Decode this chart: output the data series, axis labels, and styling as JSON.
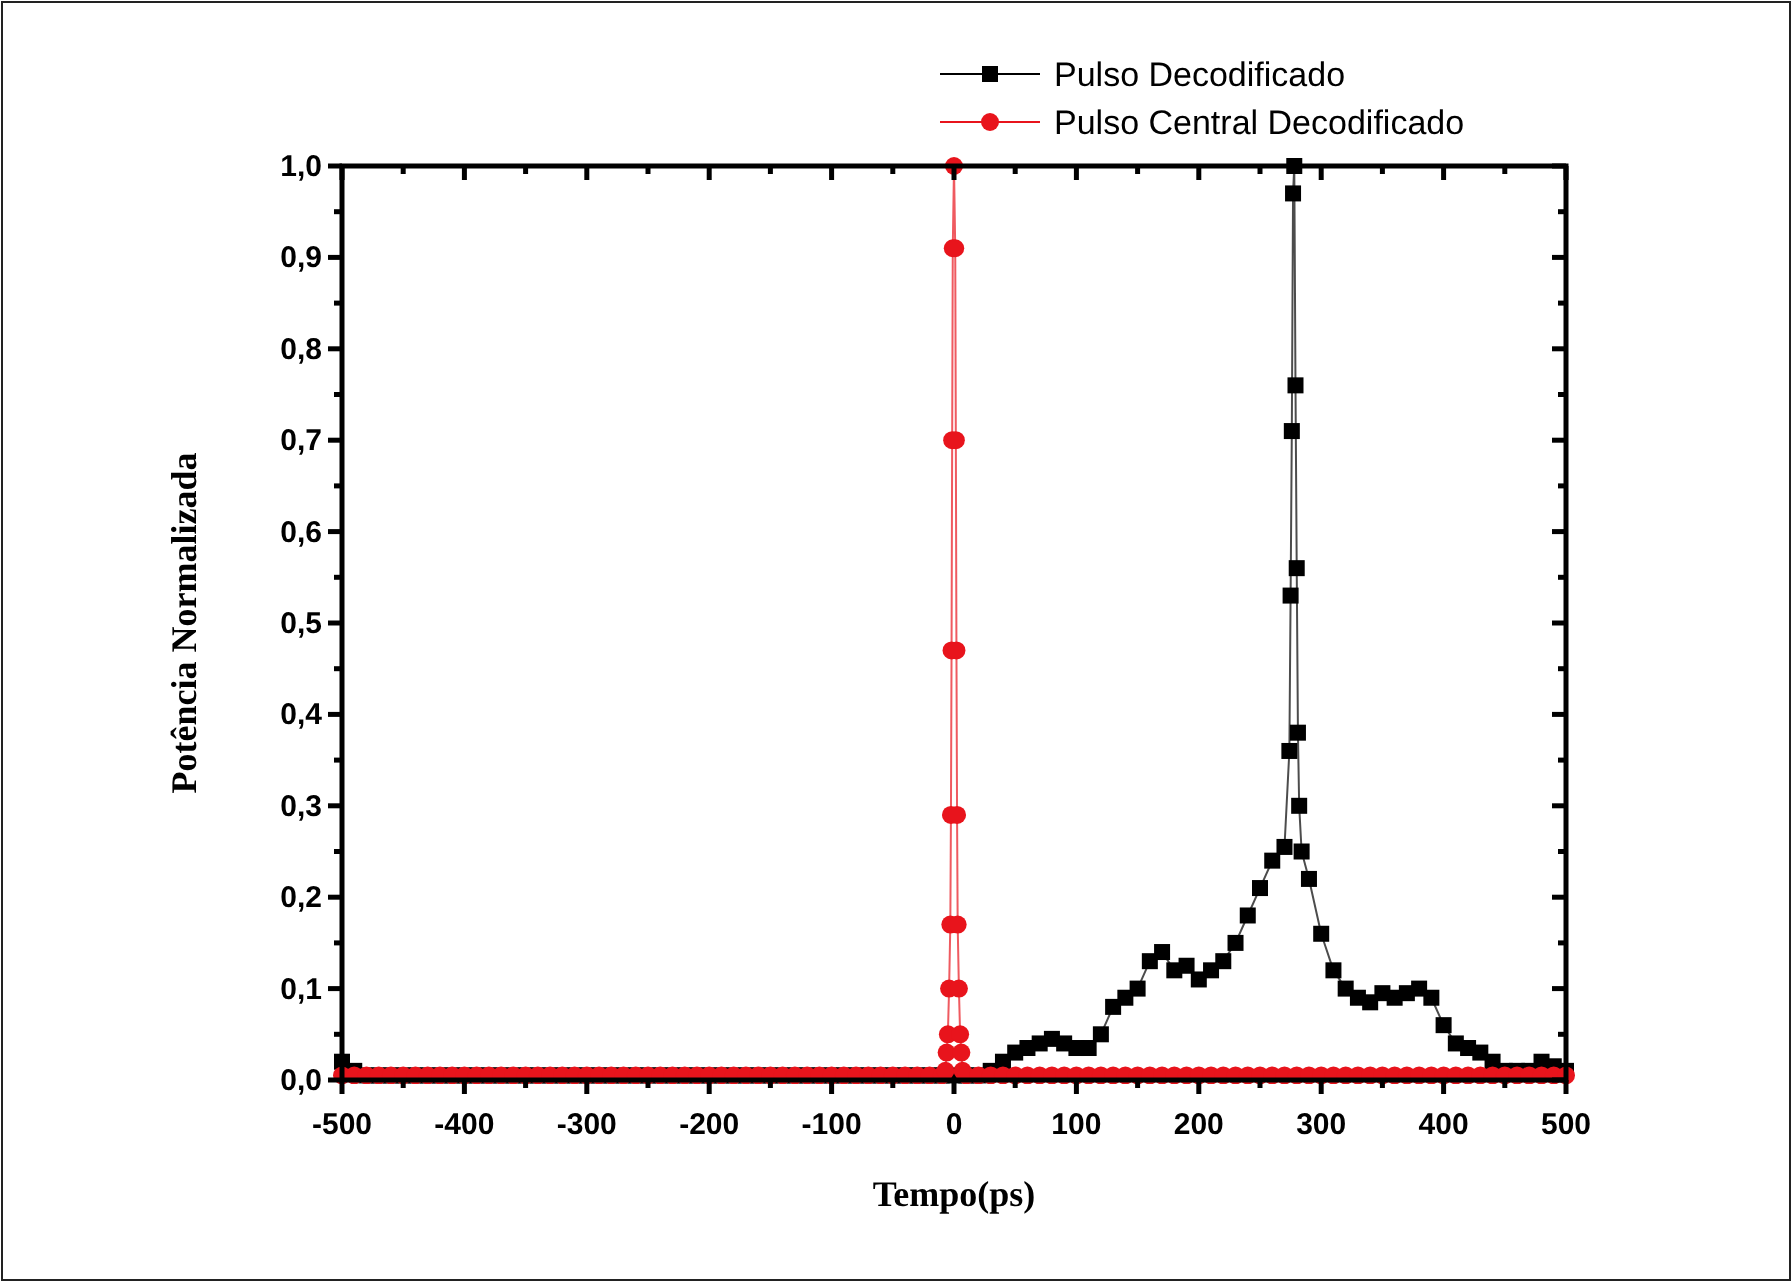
{
  "chart_data": {
    "type": "line",
    "xlabel": "Tempo(ps)",
    "ylabel": "Potência Normalizada",
    "xlim": [
      -500,
      500
    ],
    "ylim": [
      0,
      1
    ],
    "xticks": [
      -500,
      {
        "value": -450,
        "label": null
      },
      -400,
      {
        "value": -350,
        "label": null
      },
      -300,
      {
        "value": -250,
        "label": null
      },
      -200,
      {
        "value": -150,
        "label": null
      },
      -100,
      {
        "value": -50,
        "label": null
      },
      0,
      {
        "value": 50,
        "label": null
      },
      100,
      {
        "value": 150,
        "label": null
      },
      200,
      {
        "value": 250,
        "label": null
      },
      300,
      {
        "value": 350,
        "label": null
      },
      400,
      {
        "value": 450,
        "label": null
      },
      500
    ],
    "yticks": [
      {
        "value": 0,
        "label": "0,0"
      },
      {
        "value": 0.05,
        "label": null
      },
      {
        "value": 0.1,
        "label": "0,1"
      },
      {
        "value": 0.15,
        "label": null
      },
      {
        "value": 0.2,
        "label": "0,2"
      },
      {
        "value": 0.25,
        "label": null
      },
      {
        "value": 0.3,
        "label": "0,3"
      },
      {
        "value": 0.35,
        "label": null
      },
      {
        "value": 0.4,
        "label": "0,4"
      },
      {
        "value": 0.45,
        "label": null
      },
      {
        "value": 0.5,
        "label": "0,5"
      },
      {
        "value": 0.55,
        "label": null
      },
      {
        "value": 0.6,
        "label": "0,6"
      },
      {
        "value": 0.65,
        "label": null
      },
      {
        "value": 0.7,
        "label": "0,7"
      },
      {
        "value": 0.75,
        "label": null
      },
      {
        "value": 0.8,
        "label": "0,8"
      },
      {
        "value": 0.85,
        "label": null
      },
      {
        "value": 0.9,
        "label": "0,9"
      },
      {
        "value": 0.95,
        "label": null
      },
      {
        "value": 1,
        "label": "1,0"
      }
    ],
    "grid": false,
    "legend": "top right",
    "line_style": "solid",
    "series": [
      {
        "name": "Pulso Decodificado",
        "color": "#000000",
        "marker": "square",
        "x": [
          -500,
          -490,
          -480,
          -470,
          -460,
          -450,
          -440,
          -430,
          -420,
          -410,
          -400,
          -390,
          -380,
          -370,
          -360,
          -350,
          -340,
          -330,
          -320,
          -310,
          -300,
          -290,
          -280,
          -270,
          -260,
          -250,
          -240,
          -230,
          -220,
          -210,
          -200,
          -190,
          -180,
          -170,
          -160,
          -150,
          -140,
          -130,
          -120,
          -110,
          -100,
          -90,
          -80,
          -70,
          -60,
          -50,
          -40,
          -30,
          -20,
          -10,
          0,
          10,
          20,
          30,
          40,
          50,
          60,
          70,
          80,
          90,
          100,
          110,
          120,
          130,
          140,
          150,
          160,
          170,
          180,
          190,
          200,
          210,
          220,
          230,
          240,
          250,
          260,
          270,
          274,
          275,
          276,
          277,
          278,
          279,
          280,
          281,
          282,
          284,
          290,
          300,
          310,
          320,
          330,
          340,
          350,
          360,
          370,
          380,
          390,
          400,
          410,
          420,
          430,
          440,
          450,
          460,
          470,
          480,
          490,
          500
        ],
        "values": [
          0.02,
          0.01,
          0.005,
          0.005,
          0.005,
          0.005,
          0.005,
          0.005,
          0.005,
          0.005,
          0.005,
          0.005,
          0.005,
          0.005,
          0.005,
          0.005,
          0.005,
          0.005,
          0.005,
          0.005,
          0.005,
          0.005,
          0.005,
          0.005,
          0.005,
          0.005,
          0.005,
          0.005,
          0.005,
          0.005,
          0.005,
          0.005,
          0.005,
          0.005,
          0.005,
          0.005,
          0.005,
          0.005,
          0.005,
          0.005,
          0.005,
          0.005,
          0.005,
          0.005,
          0.005,
          0.005,
          0.005,
          0.005,
          0.005,
          0.005,
          0.005,
          0.005,
          0.005,
          0.01,
          0.02,
          0.03,
          0.035,
          0.04,
          0.045,
          0.04,
          0.035,
          0.035,
          0.05,
          0.08,
          0.09,
          0.1,
          0.13,
          0.14,
          0.12,
          0.125,
          0.11,
          0.12,
          0.13,
          0.15,
          0.18,
          0.21,
          0.24,
          0.255,
          0.36,
          0.53,
          0.71,
          0.97,
          1,
          0.76,
          0.56,
          0.38,
          0.3,
          0.25,
          0.22,
          0.16,
          0.12,
          0.1,
          0.09,
          0.085,
          0.095,
          0.09,
          0.095,
          0.1,
          0.09,
          0.06,
          0.04,
          0.035,
          0.03,
          0.02,
          0.01,
          0.01,
          0.01,
          0.02,
          0.015,
          0.01
        ]
      },
      {
        "name": "Pulso Central Decodificado",
        "color": "#e8141c",
        "marker": "circle",
        "x": [
          -500,
          -490,
          -480,
          -470,
          -460,
          -450,
          -440,
          -430,
          -420,
          -410,
          -400,
          -390,
          -380,
          -370,
          -360,
          -350,
          -340,
          -330,
          -320,
          -310,
          -300,
          -290,
          -280,
          -270,
          -260,
          -250,
          -240,
          -230,
          -220,
          -210,
          -200,
          -190,
          -180,
          -170,
          -160,
          -150,
          -140,
          -130,
          -120,
          -110,
          -100,
          -90,
          -80,
          -70,
          -60,
          -50,
          -40,
          -30,
          -20,
          -10,
          -7,
          -6,
          -5,
          -4,
          -3,
          -2.5,
          -2,
          -1.5,
          -1,
          0,
          1,
          1.5,
          2,
          2.5,
          3,
          4,
          5,
          6,
          7,
          10,
          20,
          30,
          40,
          50,
          60,
          70,
          80,
          90,
          100,
          110,
          120,
          130,
          140,
          150,
          160,
          170,
          180,
          190,
          200,
          210,
          220,
          230,
          240,
          250,
          260,
          270,
          280,
          290,
          300,
          310,
          320,
          330,
          340,
          350,
          360,
          370,
          380,
          390,
          400,
          410,
          420,
          430,
          440,
          450,
          460,
          470,
          480,
          490,
          500
        ],
        "values": [
          0.005,
          0.005,
          0.005,
          0.005,
          0.005,
          0.005,
          0.005,
          0.005,
          0.005,
          0.005,
          0.005,
          0.005,
          0.005,
          0.005,
          0.005,
          0.005,
          0.005,
          0.005,
          0.005,
          0.005,
          0.005,
          0.005,
          0.005,
          0.005,
          0.005,
          0.005,
          0.005,
          0.005,
          0.005,
          0.005,
          0.005,
          0.005,
          0.005,
          0.005,
          0.005,
          0.005,
          0.005,
          0.005,
          0.005,
          0.005,
          0.005,
          0.005,
          0.005,
          0.005,
          0.005,
          0.005,
          0.005,
          0.005,
          0.005,
          0.005,
          0.01,
          0.03,
          0.05,
          0.1,
          0.17,
          0.29,
          0.47,
          0.7,
          0.91,
          1,
          0.91,
          0.7,
          0.47,
          0.29,
          0.17,
          0.1,
          0.05,
          0.03,
          0.01,
          0.005,
          0.005,
          0.005,
          0.005,
          0.005,
          0.005,
          0.005,
          0.005,
          0.005,
          0.005,
          0.005,
          0.005,
          0.005,
          0.005,
          0.005,
          0.005,
          0.005,
          0.005,
          0.005,
          0.005,
          0.005,
          0.005,
          0.005,
          0.005,
          0.005,
          0.005,
          0.005,
          0.005,
          0.005,
          0.005,
          0.005,
          0.005,
          0.005,
          0.005,
          0.005,
          0.005,
          0.005,
          0.005,
          0.005,
          0.005,
          0.005,
          0.005,
          0.005,
          0.005,
          0.005,
          0.005,
          0.005,
          0.005,
          0.005,
          0.005
        ]
      }
    ]
  }
}
